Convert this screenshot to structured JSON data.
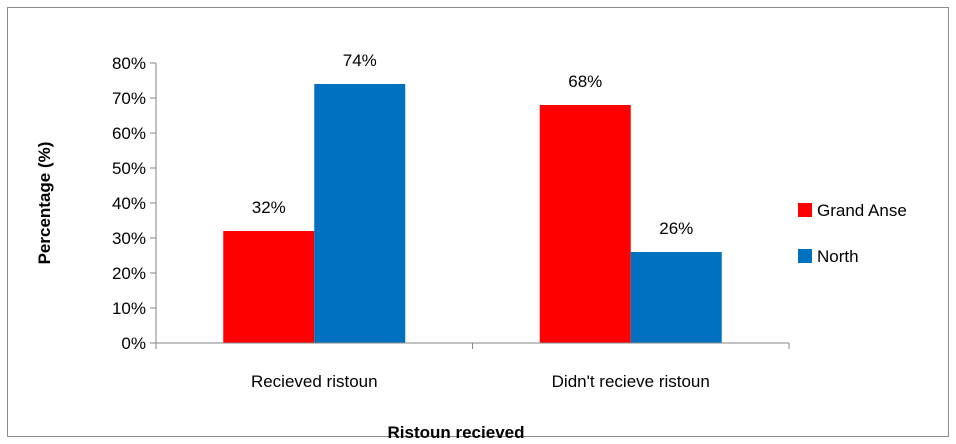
{
  "chart_data": {
    "type": "bar",
    "categories": [
      "Recieved ristoun",
      "Didn't recieve ristoun"
    ],
    "series": [
      {
        "name": "Grand Anse",
        "color": "#ff0000",
        "values": [
          32,
          68
        ],
        "labels": [
          "32%",
          "68%"
        ]
      },
      {
        "name": "North",
        "color": "#0070c0",
        "values": [
          74,
          26
        ],
        "labels": [
          "74%",
          "26%"
        ]
      }
    ],
    "ylim": [
      0,
      80
    ],
    "yticks": [
      "0%",
      "10%",
      "20%",
      "30%",
      "40%",
      "50%",
      "60%",
      "70%",
      "80%"
    ],
    "xlabel": "Ristoun recieved",
    "ylabel": "Percentage (%)",
    "grid": false,
    "legend_position": "right"
  }
}
